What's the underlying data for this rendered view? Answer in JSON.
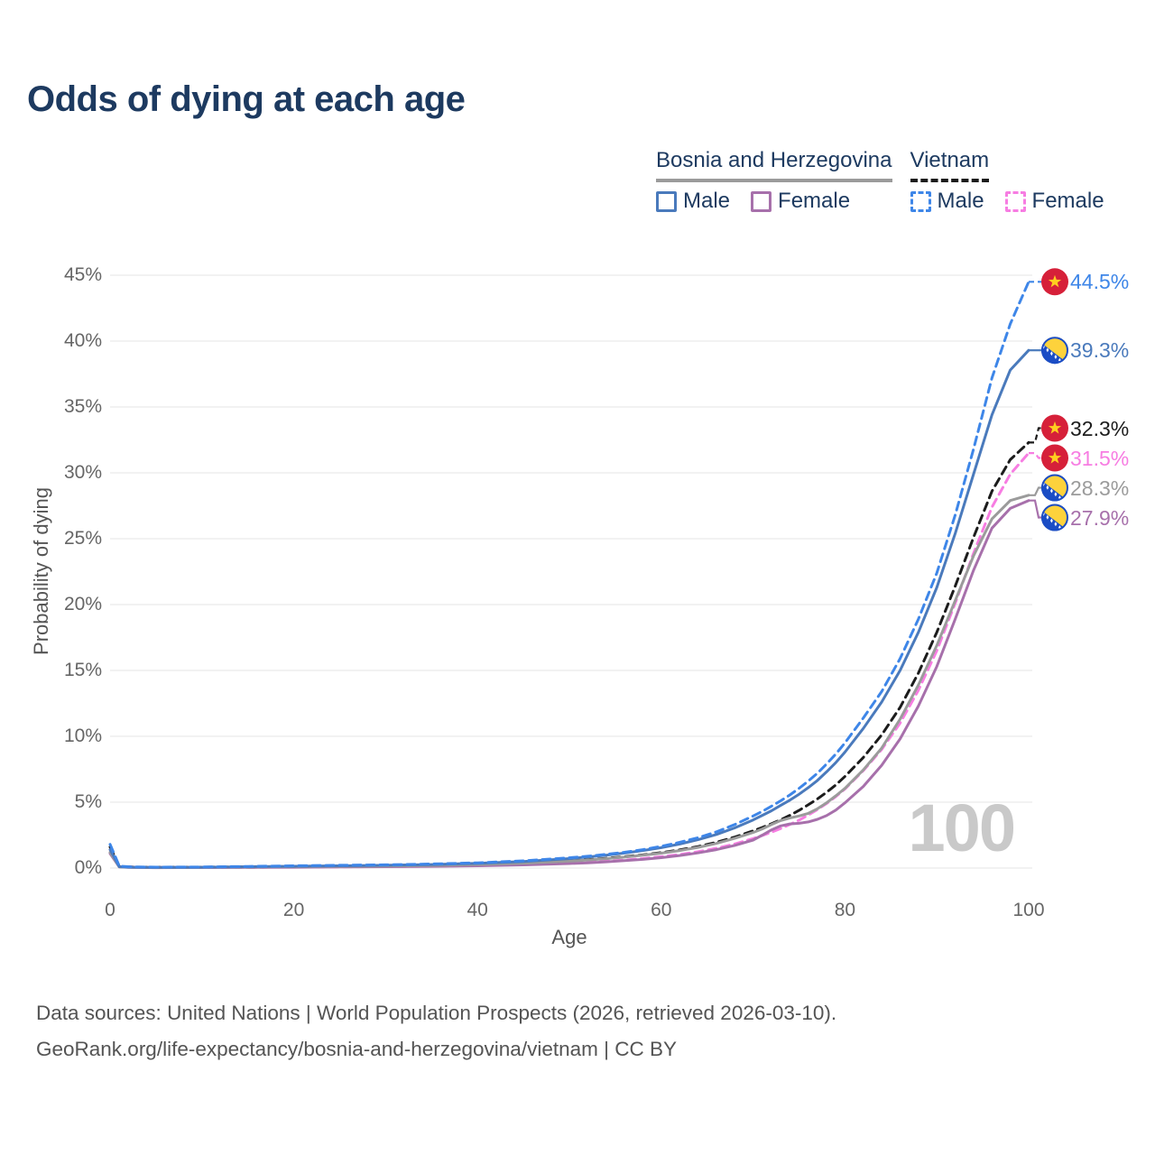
{
  "title": "Odds of dying at each age",
  "watermark": "100",
  "legend": {
    "groups": [
      {
        "id": "ba",
        "country": "Bosnia and Herzegovina",
        "series": "ba_a",
        "items": [
          {
            "label": "Male",
            "series": "ba_m"
          },
          {
            "label": "Female",
            "series": "ba_f"
          }
        ]
      },
      {
        "id": "vn",
        "country": "Vietnam",
        "series": "vn_a",
        "items": [
          {
            "label": "Male",
            "series": "vn_m"
          },
          {
            "label": "Female",
            "series": "vn_f"
          }
        ]
      }
    ]
  },
  "axes": {
    "x": {
      "title": "Age",
      "min": 0,
      "max": 100,
      "ticks": [
        0,
        20,
        40,
        60,
        80,
        100
      ]
    },
    "y": {
      "title": "Probability of dying",
      "min": 0,
      "max": 45,
      "ticks": [
        "0%",
        "5%",
        "10%",
        "15%",
        "20%",
        "25%",
        "30%",
        "35%",
        "40%",
        "45%"
      ]
    }
  },
  "footer": {
    "line1": "Data sources: United Nations | World Population Prospects (2026, retrieved 2026-03-10).",
    "line2": "GeoRank.org/life-expectancy/bosnia-and-herzegovina/vietnam | CC BY"
  },
  "colors": {
    "grid": "#eaeaea",
    "tick_text": "#666666",
    "axis_title_text": "#555555",
    "title_text": "#1d3a60",
    "legend_text": "#1d3a60",
    "footer_text": "#545454",
    "watermark": "#c9c9c9",
    "vietnam_flag_red": "#d62039",
    "vietnam_flag_star": "#ffce1f",
    "bosnia_flag_yellow": "#fdd23c",
    "bosnia_flag_blue": "#1b4dc5"
  },
  "chart_data": {
    "type": "line",
    "title": "Odds of dying at each age",
    "xlabel": "Age",
    "ylabel": "Probability of dying",
    "xlim": [
      0,
      100
    ],
    "ylim_percent": [
      0,
      45
    ],
    "grid": "horizontal",
    "legend_position": "top-right",
    "x_ages": [
      0,
      1,
      2,
      3,
      5,
      10,
      15,
      20,
      25,
      30,
      35,
      40,
      45,
      50,
      52,
      54,
      56,
      58,
      60,
      62,
      64,
      66,
      68,
      70,
      71,
      72,
      73,
      74,
      75,
      76,
      77,
      78,
      79,
      80,
      82,
      84,
      86,
      88,
      90,
      92,
      94,
      96,
      98,
      100
    ],
    "series": [
      {
        "id": "vn_m",
        "name": "Vietnam Male",
        "country": "Vietnam",
        "sex": "Male",
        "flag": "vn",
        "color": "#3e86e8",
        "dash": true,
        "end_label": "44.5%",
        "values_percent": [
          1.8,
          0.15,
          0.1,
          0.08,
          0.07,
          0.08,
          0.12,
          0.17,
          0.21,
          0.25,
          0.31,
          0.4,
          0.55,
          0.78,
          0.9,
          1.04,
          1.2,
          1.4,
          1.65,
          1.95,
          2.3,
          2.75,
          3.3,
          3.95,
          4.3,
          4.7,
          5.1,
          5.55,
          6.05,
          6.6,
          7.2,
          7.9,
          8.65,
          9.5,
          11.4,
          13.4,
          15.9,
          18.9,
          22.4,
          26.8,
          31.8,
          37.2,
          41.3,
          44.5
        ]
      },
      {
        "id": "ba_m",
        "name": "Bosnia and Herzegovina Male",
        "country": "Bosnia and Herzegovina",
        "sex": "Male",
        "flag": "ba",
        "color": "#4a7abc",
        "dash": false,
        "end_label": "39.3%",
        "values_percent": [
          1.4,
          0.1,
          0.07,
          0.06,
          0.05,
          0.06,
          0.1,
          0.14,
          0.17,
          0.21,
          0.27,
          0.36,
          0.5,
          0.72,
          0.84,
          0.98,
          1.14,
          1.33,
          1.55,
          1.82,
          2.15,
          2.55,
          3.05,
          3.65,
          4.0,
          4.35,
          4.75,
          5.15,
          5.6,
          6.1,
          6.65,
          7.3,
          8.0,
          8.8,
          10.6,
          12.6,
          15.0,
          17.9,
          21.3,
          25.4,
          29.9,
          34.4,
          37.8,
          39.3
        ]
      },
      {
        "id": "vn_a",
        "name": "Vietnam Both sexes",
        "country": "Vietnam",
        "sex": "Both",
        "flag": "vn",
        "color": "#1c1c1c",
        "dash": true,
        "end_label": "32.3%",
        "values_percent": [
          1.6,
          0.12,
          0.09,
          0.07,
          0.06,
          0.07,
          0.09,
          0.12,
          0.15,
          0.18,
          0.22,
          0.29,
          0.39,
          0.55,
          0.64,
          0.74,
          0.86,
          1.0,
          1.17,
          1.38,
          1.63,
          1.95,
          2.35,
          2.82,
          3.08,
          3.36,
          3.66,
          4.0,
          4.38,
          4.8,
          5.25,
          5.75,
          6.3,
          6.95,
          8.4,
          10.1,
          12.2,
          14.8,
          17.9,
          21.4,
          25.1,
          28.6,
          31.0,
          32.3
        ]
      },
      {
        "id": "vn_f",
        "name": "Vietnam Female",
        "country": "Vietnam",
        "sex": "Female",
        "flag": "vn",
        "color": "#f77de2",
        "dash": true,
        "end_label": "31.5%",
        "values_percent": [
          1.4,
          0.1,
          0.08,
          0.06,
          0.05,
          0.05,
          0.06,
          0.07,
          0.09,
          0.11,
          0.14,
          0.19,
          0.26,
          0.37,
          0.44,
          0.52,
          0.61,
          0.72,
          0.86,
          1.03,
          1.24,
          1.5,
          1.83,
          2.24,
          2.47,
          2.72,
          3.0,
          3.3,
          3.64,
          4.02,
          4.44,
          4.9,
          5.42,
          6.0,
          7.4,
          9.0,
          11.0,
          13.5,
          16.5,
          20.1,
          23.9,
          27.4,
          29.9,
          31.5
        ]
      },
      {
        "id": "ba_a",
        "name": "Bosnia and Herzegovina Both sexes",
        "country": "Bosnia and Herzegovina",
        "sex": "Both",
        "flag": "ba",
        "color": "#9b9b9b",
        "dash": false,
        "end_label": "28.3%",
        "values_percent": [
          1.2,
          0.09,
          0.06,
          0.05,
          0.04,
          0.05,
          0.08,
          0.11,
          0.13,
          0.16,
          0.2,
          0.27,
          0.37,
          0.53,
          0.61,
          0.71,
          0.83,
          0.97,
          1.13,
          1.33,
          1.57,
          1.87,
          2.25,
          2.7,
          2.97,
          3.3,
          3.6,
          3.8,
          3.95,
          4.15,
          4.5,
          4.95,
          5.48,
          6.05,
          7.45,
          9.1,
          11.3,
          13.9,
          16.9,
          20.3,
          23.7,
          26.5,
          27.9,
          28.3
        ]
      },
      {
        "id": "ba_f",
        "name": "Bosnia and Herzegovina Female",
        "country": "Bosnia and Herzegovina",
        "sex": "Female",
        "flag": "ba",
        "color": "#a770ab",
        "dash": false,
        "end_label": "27.9%",
        "values_percent": [
          1.1,
          0.08,
          0.05,
          0.04,
          0.03,
          0.04,
          0.05,
          0.06,
          0.08,
          0.1,
          0.13,
          0.17,
          0.24,
          0.34,
          0.4,
          0.47,
          0.56,
          0.66,
          0.79,
          0.95,
          1.15,
          1.4,
          1.72,
          2.12,
          2.5,
          2.9,
          3.2,
          3.35,
          3.4,
          3.5,
          3.7,
          3.98,
          4.4,
          4.95,
          6.2,
          7.8,
          9.8,
          12.3,
          15.3,
          18.9,
          22.6,
          25.8,
          27.3,
          27.9
        ]
      }
    ]
  }
}
